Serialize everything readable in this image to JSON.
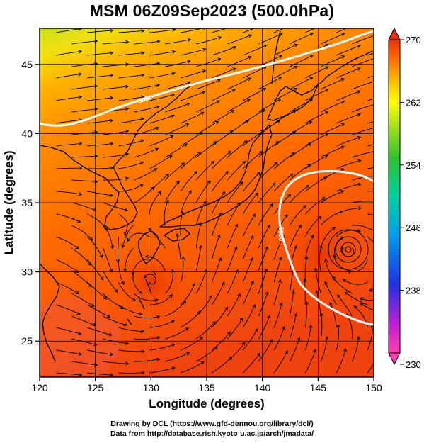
{
  "title": "MSM 06Z09Sep2023 (500.0hPa)",
  "map": {
    "xlabel": "Longitude (degrees)",
    "ylabel": "Latitude  (degrees)",
    "lon_ticks": [
      "120",
      "125",
      "130",
      "135",
      "140",
      "145",
      "150"
    ],
    "lat_ticks": [
      "25",
      "30",
      "35",
      "40",
      "45"
    ],
    "lon_range": [
      120,
      150
    ],
    "lat_range": [
      22.4,
      47.6
    ],
    "field": "temperature (K) at 500.0hPa with wind streamlines",
    "contour_labels": [
      "5880",
      "5880"
    ],
    "contour_color": "#ffffff",
    "coastline_color": "#000000",
    "streamline_color": "#000000"
  },
  "colorbar": {
    "ticks": [
      "270",
      "262",
      "254",
      "246",
      "238",
      "230"
    ],
    "range": [
      230,
      270
    ],
    "colors": [
      "#ff40b0",
      "#c020d0",
      "#2030e0",
      "#00a0e8",
      "#00d0a0",
      "#30c030",
      "#a0e020",
      "#ffff00",
      "#ffb000",
      "#ff6000",
      "#e83000"
    ]
  },
  "credits": {
    "line1": "Drawing by DCL (https://www.gfd-dennou.org/library/dcl/)",
    "line2": "Data from http://database.rish.kyoto-u.ac.jp/arch/jmadata/"
  }
}
